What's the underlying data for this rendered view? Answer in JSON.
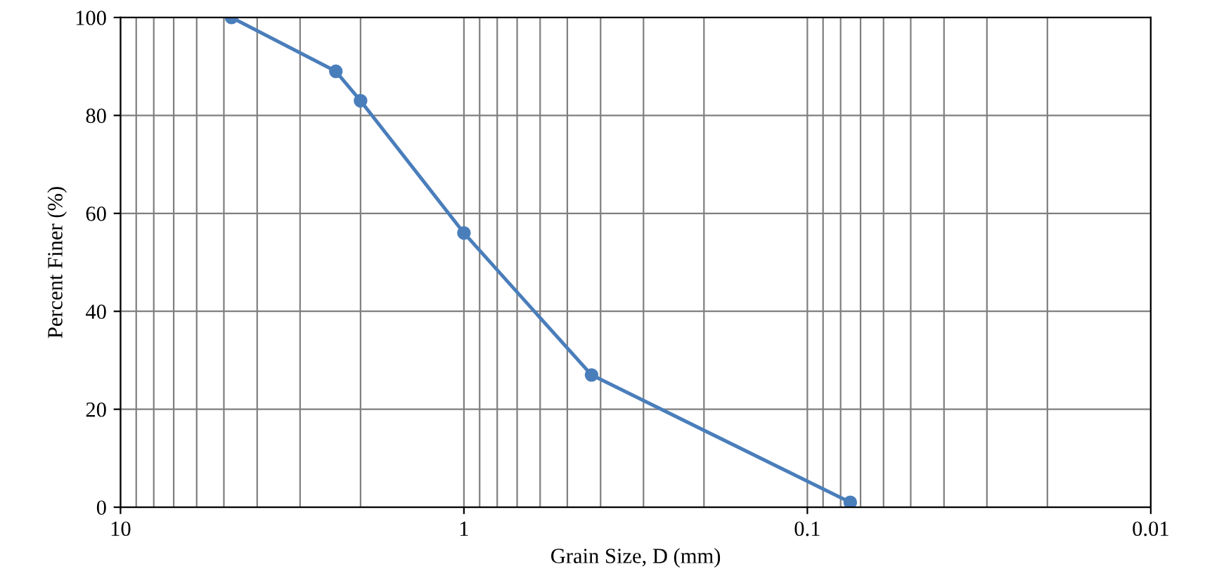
{
  "chart_data": {
    "type": "line",
    "xlabel": "Grain Size, D (mm)",
    "ylabel": "Percent Finer (%)",
    "x": [
      4.75,
      2.36,
      2.0,
      1.0,
      0.425,
      0.075
    ],
    "series": [
      {
        "color": "#4a7ebb",
        "values": [
          100,
          89,
          83,
          56,
          27,
          1
        ]
      }
    ],
    "log": "x",
    "xlim": [
      10,
      0.01
    ],
    "xticks": [
      10,
      1,
      0.1,
      0.01
    ],
    "ylim": [
      0,
      100
    ],
    "yticks": [
      0,
      20,
      40,
      60,
      80,
      100
    ],
    "grid": true,
    "marker": "circle",
    "line_style": "solid",
    "legend": false
  }
}
